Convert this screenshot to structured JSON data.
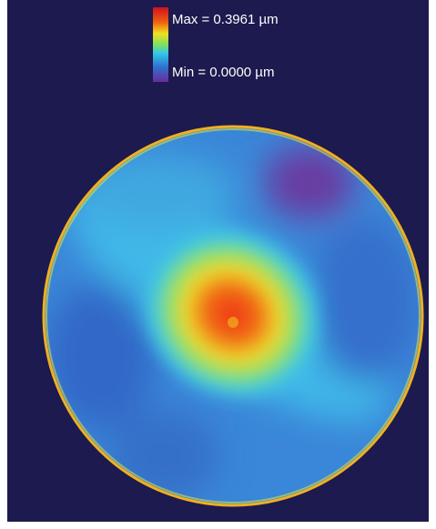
{
  "legend": {
    "max_label": "Max = 0.3961 µm",
    "min_label": "Min = 0.0000 µm"
  }
}
